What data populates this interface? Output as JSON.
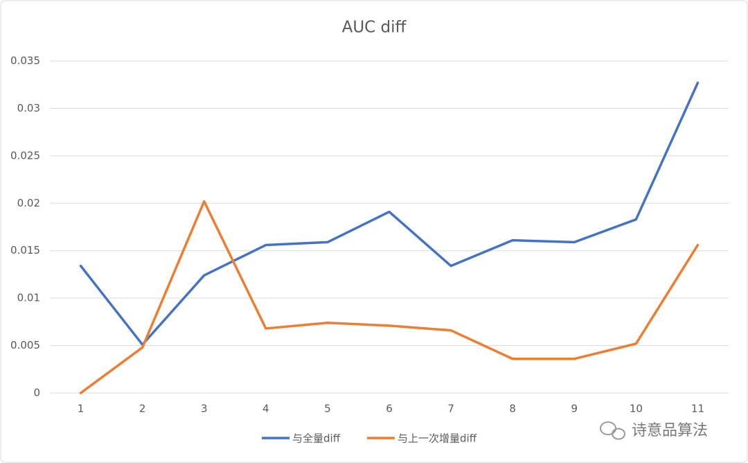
{
  "chart_data": {
    "type": "line",
    "title": "AUC diff",
    "categories": [
      "1",
      "2",
      "3",
      "4",
      "5",
      "6",
      "7",
      "8",
      "9",
      "10",
      "11"
    ],
    "series": [
      {
        "name": "与全量diff",
        "color": "#4472c4",
        "values": [
          0.0134,
          0.0051,
          0.0124,
          0.0156,
          0.0159,
          0.0191,
          0.0134,
          0.0161,
          0.0159,
          0.0183,
          0.0327
        ]
      },
      {
        "name": "与上一次增量diff",
        "color": "#ed7d31",
        "values": [
          0,
          0.0048,
          0.0202,
          0.0068,
          0.0074,
          0.0071,
          0.0066,
          0.0036,
          0.0036,
          0.0052,
          0.0156
        ]
      }
    ],
    "ylim": [
      0,
      0.035
    ],
    "yticks": [
      0,
      0.005,
      0.01,
      0.015,
      0.02,
      0.025,
      0.03,
      0.035
    ],
    "grid": true,
    "legend": "bottom",
    "watermark": "诗意品算法"
  }
}
